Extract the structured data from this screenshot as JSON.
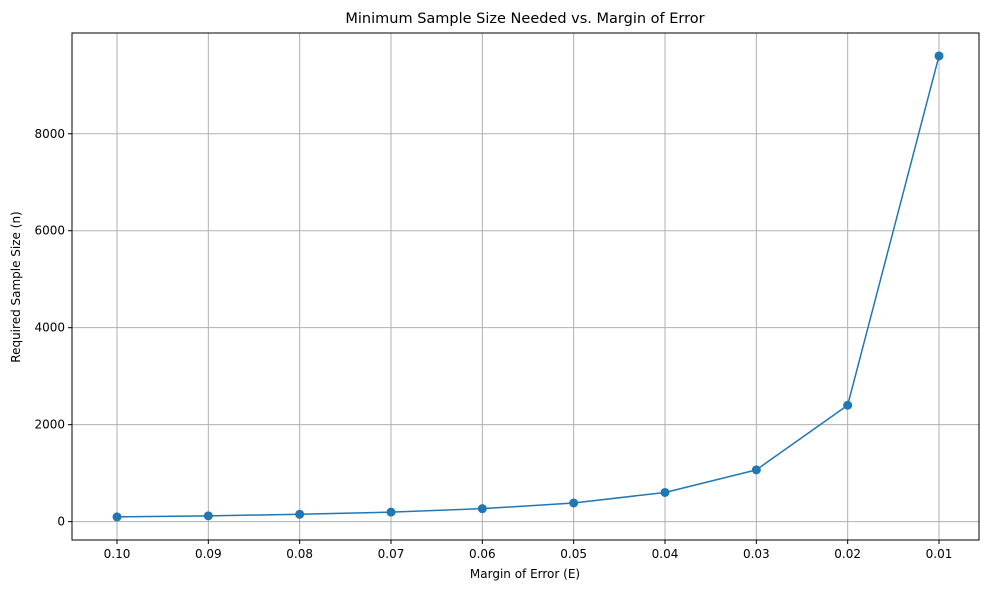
{
  "chart_data": {
    "type": "line",
    "title": "Minimum Sample Size Needed vs. Margin of Error",
    "xlabel": "Margin of Error (E)",
    "ylabel": "Required Sample Size (n)",
    "categories": [
      "0.10",
      "0.09",
      "0.08",
      "0.07",
      "0.06",
      "0.05",
      "0.04",
      "0.03",
      "0.02",
      "0.01"
    ],
    "series": [
      {
        "values": [
          97,
          119,
          151,
          196,
          267,
          385,
          601,
          1068,
          2401,
          9604
        ],
        "color": "#1f77b4",
        "marker": "circle"
      }
    ],
    "yticks": [
      0,
      2000,
      4000,
      6000,
      8000
    ],
    "ylim": [
      -379,
      10078
    ],
    "grid": true,
    "legend": "none"
  }
}
